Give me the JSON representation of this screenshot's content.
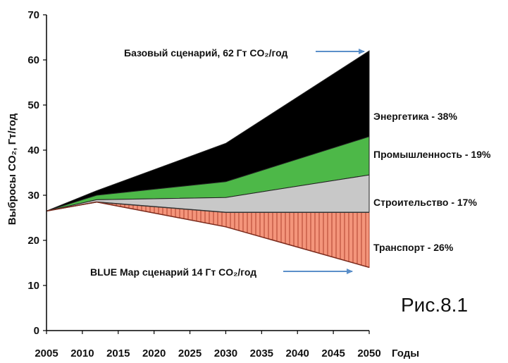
{
  "chart_data": {
    "type": "area",
    "x": [
      2005,
      2012,
      2030,
      2050
    ],
    "x_ticks": [
      2005,
      2010,
      2015,
      2020,
      2025,
      2030,
      2035,
      2040,
      2045,
      2050
    ],
    "x_tick_labels": [
      "2005",
      "2010",
      "2015",
      "2020",
      "2025",
      "2030",
      "2035",
      "2040",
      "2045",
      "2050"
    ],
    "y_ticks": [
      0,
      10,
      20,
      30,
      40,
      50,
      60,
      70
    ],
    "y_tick_labels": [
      "0",
      "10",
      "20",
      "30",
      "40",
      "50",
      "60",
      "70"
    ],
    "xlim": [
      2005,
      2050
    ],
    "ylim": [
      0,
      70
    ],
    "xlabel": "Годы",
    "ylabel": "Выбросы CO₂, Гт/год",
    "grid": false,
    "baseline_boundaries": {
      "blue_map": [
        26.5,
        28.5,
        23,
        14
      ],
      "transport_top": [
        26.5,
        28.5,
        26.2,
        26.2
      ],
      "buildings_top": [
        26.5,
        29,
        29.5,
        34.5
      ],
      "industry_top": [
        26.5,
        30,
        33,
        43
      ],
      "baseline": [
        26.5,
        31,
        41.5,
        62
      ]
    },
    "series": [
      {
        "name": "Энергетика - 38%",
        "label": "Энергетика - 38%",
        "color": "#000000"
      },
      {
        "name": "Промышленность - 19%",
        "label": "Промышленность - 19%",
        "color": "#4db848"
      },
      {
        "name": "Строительство - 17%",
        "label": "Строительство - 17%",
        "color": "#c8c8c8"
      },
      {
        "name": "Транспорт - 26%",
        "label": "Транспорт - 26%",
        "color": "#f4957b"
      }
    ],
    "annotations": {
      "baseline_label": "Базовый сценарий, 62 Гт CO₂/год",
      "blue_label": "BLUE Map сценарий 14 Гт CO₂/год"
    },
    "arrow_color": "#5b8fc9",
    "caption": "Рис.8.1"
  }
}
